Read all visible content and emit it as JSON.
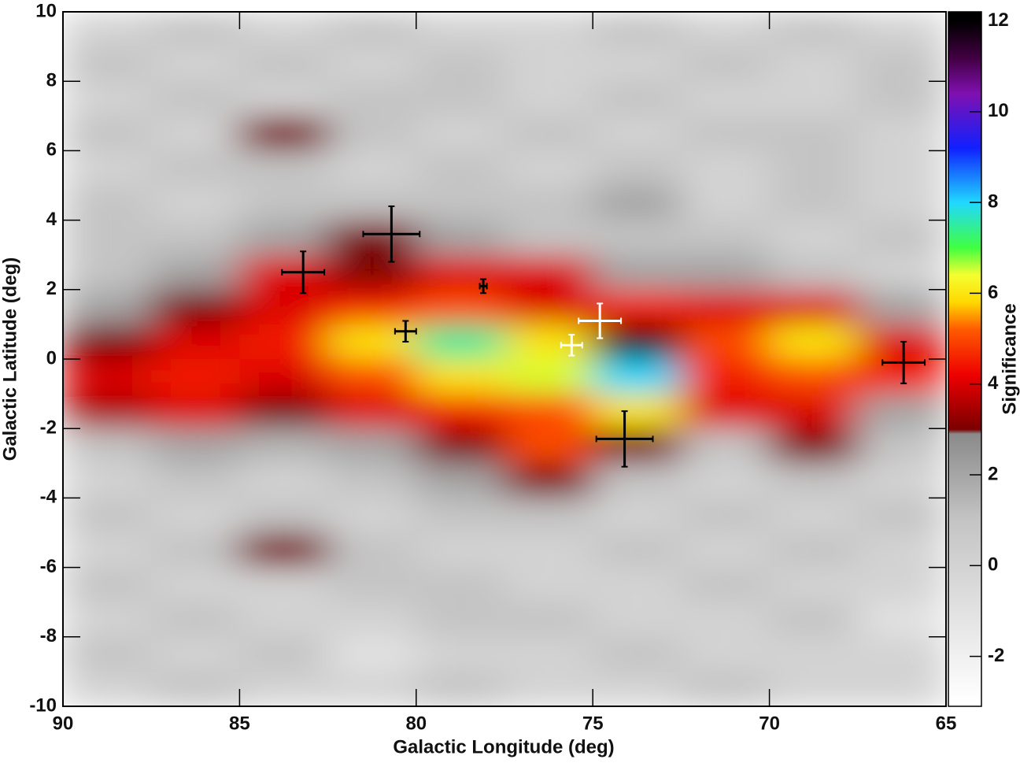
{
  "chart_data": {
    "type": "heatmap",
    "x_label": "Galactic Longitude (deg)",
    "y_label": "Galactic Latitude (deg)",
    "colorbar_label": "Significance",
    "xlim": [
      90,
      65
    ],
    "ylim": [
      -10,
      10
    ],
    "xticks": [
      90,
      85,
      80,
      75,
      70,
      65
    ],
    "yticks": [
      -10,
      -8,
      -6,
      -4,
      -2,
      0,
      2,
      4,
      6,
      8,
      10
    ],
    "zlim": [
      -3.1,
      12.2
    ],
    "zticks": [
      -2,
      0,
      2,
      4,
      6,
      8,
      10,
      12
    ],
    "colorscale": [
      [
        -3,
        "#ffffff"
      ],
      [
        1,
        "#c4c4c4"
      ],
      [
        2.9,
        "#8a8a8a"
      ],
      [
        3,
        "#7a0000"
      ],
      [
        4.2,
        "#ee0000"
      ],
      [
        5.2,
        "#ff5a00"
      ],
      [
        5.8,
        "#ffd800"
      ],
      [
        6.4,
        "#f4ff30"
      ],
      [
        7,
        "#40ff40"
      ],
      [
        8,
        "#20d8ff"
      ],
      [
        9.2,
        "#1020ff"
      ],
      [
        10.4,
        "#8010b0"
      ],
      [
        11.2,
        "#400040"
      ],
      [
        12,
        "#000000"
      ]
    ],
    "z": [
      [
        0,
        1,
        0,
        1,
        0,
        0,
        1,
        0,
        1,
        0
      ],
      [
        1,
        0,
        1,
        0,
        1,
        0,
        0,
        1,
        0,
        1
      ],
      [
        0,
        1,
        0,
        1,
        1,
        0,
        1,
        0,
        0,
        1
      ],
      [
        1,
        0,
        3,
        1,
        0,
        1,
        0,
        1,
        1,
        0
      ],
      [
        0,
        1,
        1,
        0,
        1,
        0,
        1,
        0,
        1,
        0
      ],
      [
        1,
        0,
        1,
        1,
        1,
        1,
        2,
        0,
        1,
        0
      ],
      [
        1,
        1,
        2,
        3,
        2,
        1,
        1,
        1,
        0,
        1
      ],
      [
        1,
        2,
        4,
        3,
        4,
        4,
        2,
        2,
        1,
        0
      ],
      [
        2,
        3,
        4,
        4.5,
        5,
        4,
        4.5,
        4,
        4,
        2
      ],
      [
        3,
        4,
        4.5,
        6,
        7.5,
        6,
        12,
        5,
        6,
        4
      ],
      [
        4,
        4.5,
        4,
        5,
        6,
        6.5,
        8,
        4.5,
        5,
        4.5
      ],
      [
        3.5,
        4,
        3,
        4,
        4.5,
        5,
        6,
        4,
        4,
        2
      ],
      [
        1,
        2,
        1.5,
        2,
        3,
        5,
        3,
        1,
        3,
        1
      ],
      [
        0,
        1,
        0,
        1,
        2,
        3,
        1,
        0,
        1,
        0
      ],
      [
        1,
        0,
        1,
        0,
        1,
        1,
        0,
        1,
        0,
        1
      ],
      [
        0,
        1,
        3,
        1,
        0,
        0,
        1,
        0,
        1,
        0
      ],
      [
        1,
        0,
        0,
        1,
        1,
        0,
        0,
        1,
        0,
        0
      ],
      [
        0,
        1,
        0,
        0,
        1,
        1,
        0,
        0,
        1,
        -1
      ],
      [
        1,
        0,
        1,
        -1,
        0,
        0,
        1,
        0,
        0,
        0
      ],
      [
        0,
        1,
        0,
        0,
        1,
        0,
        0,
        1,
        0,
        0
      ]
    ],
    "sources": [
      {
        "x": 83.2,
        "y": 2.5,
        "xerr": 0.6,
        "yerr": 0.6,
        "color": "#000000"
      },
      {
        "x": 80.7,
        "y": 3.6,
        "xerr": 0.8,
        "yerr": 0.8,
        "color": "#000000"
      },
      {
        "x": 80.3,
        "y": 0.8,
        "xerr": 0.3,
        "yerr": 0.3,
        "color": "#000000"
      },
      {
        "x": 78.1,
        "y": 2.1,
        "xerr": 0.1,
        "yerr": 0.2,
        "color": "#000000"
      },
      {
        "x": 75.6,
        "y": 0.4,
        "xerr": 0.3,
        "yerr": 0.3,
        "color": "#ffffff"
      },
      {
        "x": 74.8,
        "y": 1.1,
        "xerr": 0.6,
        "yerr": 0.5,
        "color": "#ffffff"
      },
      {
        "x": 74.1,
        "y": -2.3,
        "xerr": 0.8,
        "yerr": 0.8,
        "color": "#000000"
      },
      {
        "x": 66.2,
        "y": -0.1,
        "xerr": 0.6,
        "yerr": 0.6,
        "color": "#000000"
      }
    ]
  }
}
